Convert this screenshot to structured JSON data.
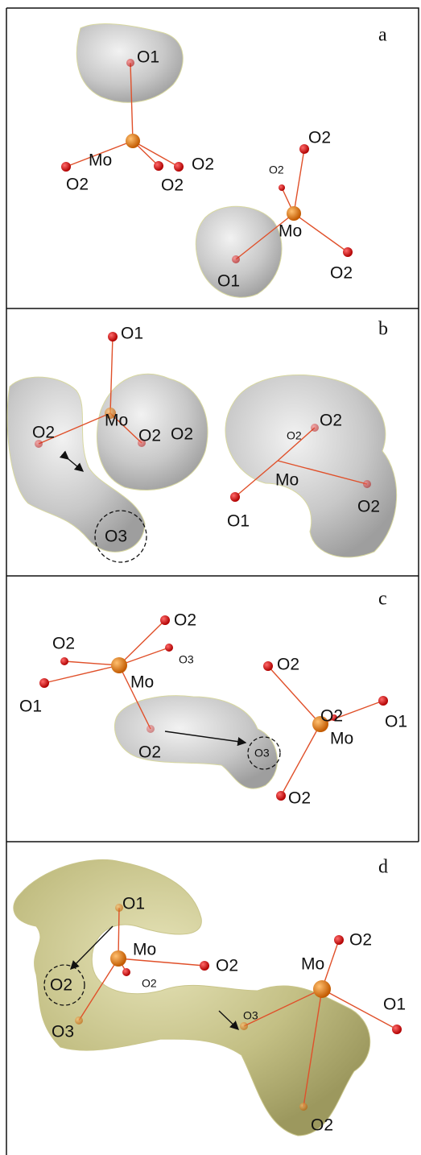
{
  "panels": [
    {
      "letter": "a",
      "labels": [
        "O1",
        "Mo",
        "O2",
        "O2",
        "O2",
        "O2",
        "O2",
        "Mo",
        "O2",
        "O1"
      ]
    },
    {
      "letter": "b",
      "labels": [
        "O1",
        "Mo",
        "O2",
        "O2",
        "O2",
        "O3",
        "O2",
        "O2",
        "Mo",
        "O1",
        "O2"
      ]
    },
    {
      "letter": "c",
      "labels": [
        "O2",
        "O2",
        "O3",
        "Mo",
        "O1",
        "O2",
        "O3",
        "O2",
        "O2",
        "O1",
        "Mo",
        "O2"
      ]
    },
    {
      "letter": "d",
      "labels": [
        "O1",
        "Mo",
        "O2",
        "O2",
        "O2",
        "O3",
        "O2",
        "Mo",
        "O1",
        "O3",
        "O2"
      ]
    }
  ]
}
